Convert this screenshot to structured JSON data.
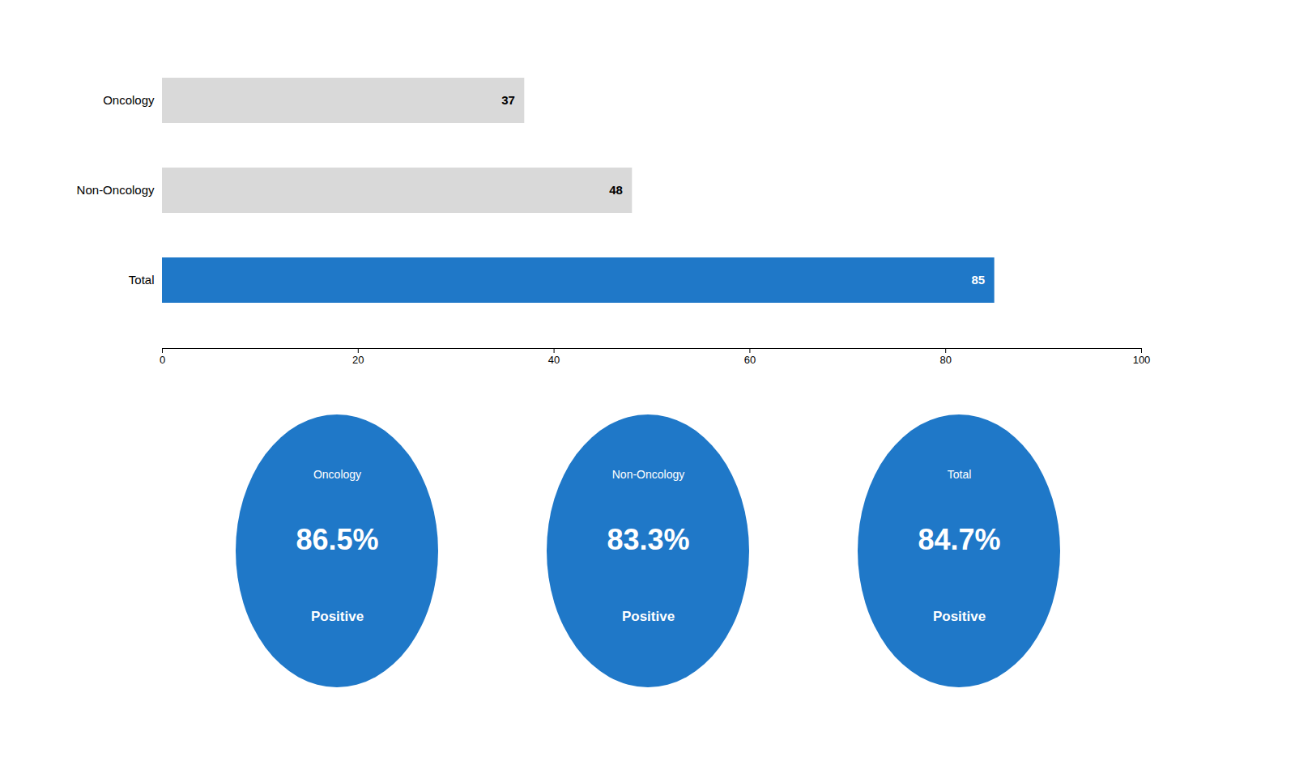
{
  "chart_data": [
    {
      "type": "bar",
      "orientation": "horizontal",
      "categories": [
        "Total",
        "Non-Oncology",
        "Oncology"
      ],
      "values": [
        85,
        48,
        37
      ],
      "colors": [
        "#1F78C8",
        "#D9D9D9",
        "#D9D9D9"
      ],
      "xlim": [
        0,
        100
      ],
      "xticks": [
        0,
        20,
        40,
        60,
        80,
        100
      ],
      "data_labels": true,
      "grid": false
    },
    {
      "type": "oval",
      "categories": [
        "Oncology",
        "Non-Oncology",
        "Total"
      ],
      "values": [
        86.5,
        83.3,
        84.7
      ],
      "value_labels": [
        "86.5%",
        "83.3%",
        "84.7%"
      ],
      "annotations": [
        "Positive",
        "Positive",
        "Positive"
      ],
      "color": "#1F78C8",
      "data_labels": true,
      "tick_labels": false
    }
  ]
}
